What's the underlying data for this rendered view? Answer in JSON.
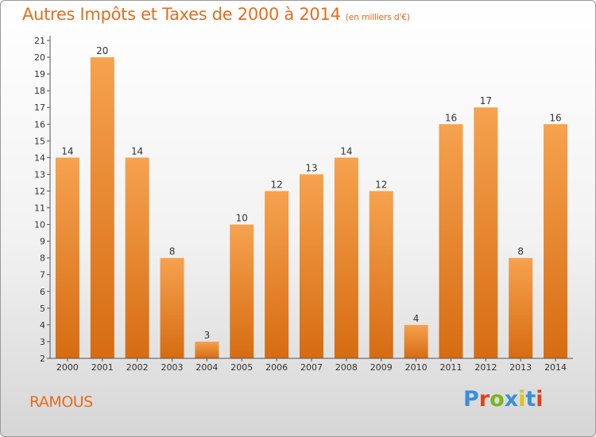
{
  "header": {
    "title": "Autres Impôts et Taxes de 2000 à 2014",
    "unit": "(en milliers d'€)"
  },
  "footer": {
    "place": "RAMOUS",
    "brand": "Proxiti",
    "brand_colors": [
      "#3a8fd6",
      "#e0421b",
      "#7ab51d",
      "#3a8fd6",
      "#e0c21b",
      "#3a8fd6",
      "#e0421b"
    ]
  },
  "colors": {
    "accent": "#e06f1e",
    "bar_top": "#f6a24f",
    "bar_bottom": "#d66c12"
  },
  "chart_data": {
    "type": "bar",
    "title": "Autres Impôts et Taxes de 2000 à 2014",
    "subtitle": "(en milliers d'€)",
    "categories": [
      "2000",
      "2001",
      "2002",
      "2003",
      "2004",
      "2005",
      "2006",
      "2007",
      "2008",
      "2009",
      "2010",
      "2011",
      "2012",
      "2013",
      "2014"
    ],
    "values": [
      14,
      20,
      14,
      8,
      3,
      10,
      12,
      13,
      14,
      12,
      4,
      16,
      17,
      8,
      16
    ],
    "data_labels": [
      "14",
      "20",
      "14",
      "8",
      "3",
      "10",
      "12",
      "13",
      "14",
      "12",
      "4",
      "16",
      "17",
      "8",
      "16"
    ],
    "ylim": [
      2,
      21
    ],
    "yticks": [
      "2",
      "3",
      "4",
      "5",
      "6",
      "7",
      "8",
      "9",
      "10",
      "11",
      "12",
      "13",
      "14",
      "15",
      "16",
      "17",
      "18",
      "19",
      "20",
      "21"
    ],
    "grid": false,
    "legend": "none"
  }
}
